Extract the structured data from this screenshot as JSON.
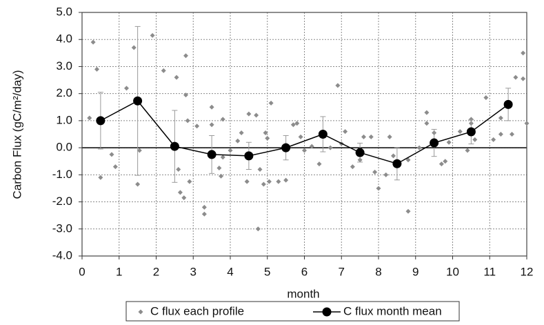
{
  "chart_data": {
    "type": "scatter",
    "xlabel": "month",
    "ylabel": "Carbon Flux (gC/m²/day)",
    "xlim": [
      0,
      12
    ],
    "xticks": [
      0,
      1,
      2,
      3,
      4,
      5,
      6,
      7,
      8,
      9,
      10,
      11,
      12
    ],
    "ylim": [
      -4,
      5
    ],
    "yticks": [
      {
        "value": -4,
        "label": "-4.0"
      },
      {
        "value": -3,
        "label": "-3.0"
      },
      {
        "value": -2,
        "label": "-2.0"
      },
      {
        "value": -1,
        "label": "-1.0"
      },
      {
        "value": 0,
        "label": "0.0"
      },
      {
        "value": 1,
        "label": "1.0"
      },
      {
        "value": 2,
        "label": "2.0"
      },
      {
        "value": 3,
        "label": "3.0"
      },
      {
        "value": 4,
        "label": "4.0"
      },
      {
        "value": 5,
        "label": "5.0"
      }
    ],
    "grid": true,
    "legend": "bottom",
    "series": [
      {
        "name": "C flux each profile",
        "color": "#8c8c8c",
        "marker": "diamond",
        "x": [
          0.2,
          0.3,
          0.4,
          0.5,
          0.8,
          0.9,
          1.2,
          1.4,
          1.5,
          1.55,
          1.9,
          2.2,
          2.55,
          2.6,
          2.65,
          2.75,
          2.8,
          2.8,
          2.85,
          2.9,
          3.1,
          3.3,
          3.3,
          3.5,
          3.5,
          3.7,
          3.75,
          3.8,
          3.8,
          4.0,
          4.2,
          4.3,
          4.45,
          4.5,
          4.7,
          4.8,
          4.75,
          4.9,
          4.95,
          5.0,
          5.05,
          5.1,
          5.3,
          5.5,
          5.5,
          5.7,
          5.8,
          5.9,
          6.0,
          6.2,
          6.4,
          6.5,
          6.7,
          6.9,
          7.0,
          7.1,
          7.3,
          7.5,
          7.6,
          7.8,
          7.9,
          8.0,
          8.2,
          8.3,
          8.4,
          8.8,
          8.8,
          9.1,
          9.3,
          9.3,
          9.5,
          9.7,
          9.8,
          9.9,
          10.2,
          10.4,
          10.5,
          10.5,
          10.6,
          10.9,
          11.1,
          11.3,
          11.3,
          11.6,
          11.7,
          11.9,
          11.9,
          12.0
        ],
        "values": [
          1.1,
          3.9,
          2.9,
          -1.1,
          -0.25,
          -0.7,
          2.2,
          3.7,
          -1.35,
          -0.1,
          4.15,
          2.85,
          2.6,
          -0.8,
          -1.65,
          -1.85,
          3.4,
          1.95,
          1.0,
          -1.25,
          0.8,
          -2.2,
          -2.45,
          1.5,
          0.85,
          -0.75,
          -1.05,
          1.05,
          -0.35,
          -0.1,
          0.25,
          0.55,
          -1.25,
          1.25,
          1.2,
          -0.8,
          -3.0,
          -1.35,
          0.55,
          0.35,
          -1.25,
          1.65,
          -1.25,
          -1.2,
          0.1,
          0.85,
          0.9,
          0.4,
          -0.1,
          0.05,
          -0.6,
          0.55,
          0.0,
          2.3,
          0.15,
          0.6,
          -0.7,
          -0.45,
          0.4,
          0.4,
          -0.9,
          -1.5,
          -1.0,
          0.4,
          -0.3,
          -2.35,
          -0.45,
          0.0,
          0.9,
          1.3,
          0.55,
          -0.6,
          -0.5,
          0.2,
          0.6,
          -0.1,
          0.9,
          1.05,
          0.3,
          1.85,
          0.3,
          1.1,
          0.5,
          0.5,
          2.6,
          3.5,
          2.55,
          0.9
        ]
      },
      {
        "name": "C flux month mean",
        "color": "#000000",
        "marker": "circle-line",
        "x": [
          0.5,
          1.5,
          2.5,
          3.5,
          4.5,
          5.5,
          6.5,
          7.5,
          8.5,
          9.5,
          10.5,
          11.5
        ],
        "values": [
          1.0,
          1.73,
          0.05,
          -0.25,
          -0.3,
          0.0,
          0.5,
          -0.18,
          -0.59,
          0.18,
          0.59,
          1.6
        ],
        "errors": [
          1.05,
          2.75,
          1.33,
          0.7,
          0.5,
          0.45,
          0.65,
          0.35,
          0.6,
          0.5,
          0.45,
          0.6
        ]
      }
    ]
  }
}
